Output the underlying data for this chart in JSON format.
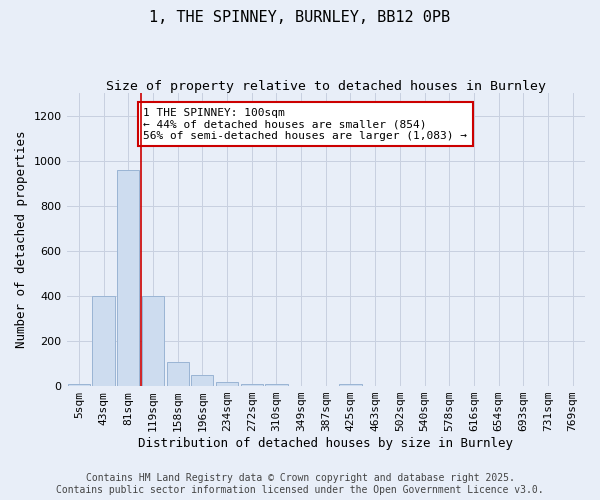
{
  "title": "1, THE SPINNEY, BURNLEY, BB12 0PB",
  "subtitle": "Size of property relative to detached houses in Burnley",
  "xlabel": "Distribution of detached houses by size in Burnley",
  "ylabel": "Number of detached properties",
  "bar_color": "#cddcef",
  "bar_edge_color": "#9ab4d4",
  "categories": [
    "5sqm",
    "43sqm",
    "81sqm",
    "119sqm",
    "158sqm",
    "196sqm",
    "234sqm",
    "272sqm",
    "310sqm",
    "349sqm",
    "387sqm",
    "425sqm",
    "463sqm",
    "502sqm",
    "540sqm",
    "578sqm",
    "616sqm",
    "654sqm",
    "693sqm",
    "731sqm",
    "769sqm"
  ],
  "values": [
    10,
    400,
    960,
    400,
    105,
    50,
    20,
    10,
    10,
    0,
    0,
    10,
    0,
    0,
    0,
    0,
    0,
    0,
    0,
    0,
    0
  ],
  "ylim": [
    0,
    1300
  ],
  "yticks": [
    0,
    200,
    400,
    600,
    800,
    1000,
    1200
  ],
  "red_line_x": 2.5,
  "annotation_text": "1 THE SPINNEY: 100sqm\n← 44% of detached houses are smaller (854)\n56% of semi-detached houses are larger (1,083) →",
  "annotation_box_color": "white",
  "annotation_box_edge_color": "#cc0000",
  "red_line_color": "#cc0000",
  "footer_line1": "Contains HM Land Registry data © Crown copyright and database right 2025.",
  "footer_line2": "Contains public sector information licensed under the Open Government Licence v3.0.",
  "background_color": "#e8eef8",
  "grid_color": "#c8d0e0",
  "title_fontsize": 11,
  "subtitle_fontsize": 9.5,
  "axis_label_fontsize": 9,
  "tick_fontsize": 8,
  "annotation_fontsize": 8,
  "footer_fontsize": 7
}
